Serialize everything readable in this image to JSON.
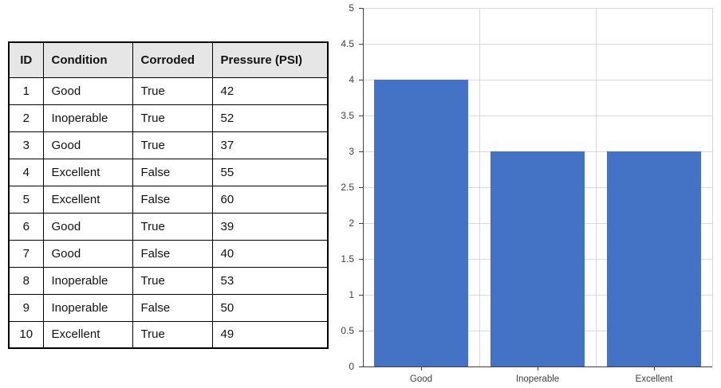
{
  "table": {
    "columns": [
      "ID",
      "Condition",
      "Corroded",
      "Pressure (PSI)"
    ],
    "rows": [
      [
        "1",
        "Good",
        "True",
        "42"
      ],
      [
        "2",
        "Inoperable",
        "True",
        "52"
      ],
      [
        "3",
        "Good",
        "True",
        "37"
      ],
      [
        "4",
        "Excellent",
        "False",
        "55"
      ],
      [
        "5",
        "Excellent",
        "False",
        "60"
      ],
      [
        "6",
        "Good",
        "True",
        "39"
      ],
      [
        "7",
        "Good",
        "False",
        "40"
      ],
      [
        "8",
        "Inoperable",
        "True",
        "53"
      ],
      [
        "9",
        "Inoperable",
        "False",
        "50"
      ],
      [
        "10",
        "Excellent",
        "True",
        "49"
      ]
    ],
    "header_bg": "#E7E6E6",
    "border_color": "#000000"
  },
  "chart_data": {
    "type": "bar",
    "categories": [
      "Good",
      "Inoperable",
      "Excellent"
    ],
    "values": [
      4,
      3,
      3
    ],
    "title": "",
    "xlabel": "",
    "ylabel": "",
    "ylim": [
      0,
      5
    ],
    "ytick_step": 0.5,
    "grid": true,
    "legend": false,
    "bar_color": "#4472C4",
    "gridline_color": "#D9D9D9",
    "axis_color": "#404040",
    "label_color": "#404040"
  }
}
